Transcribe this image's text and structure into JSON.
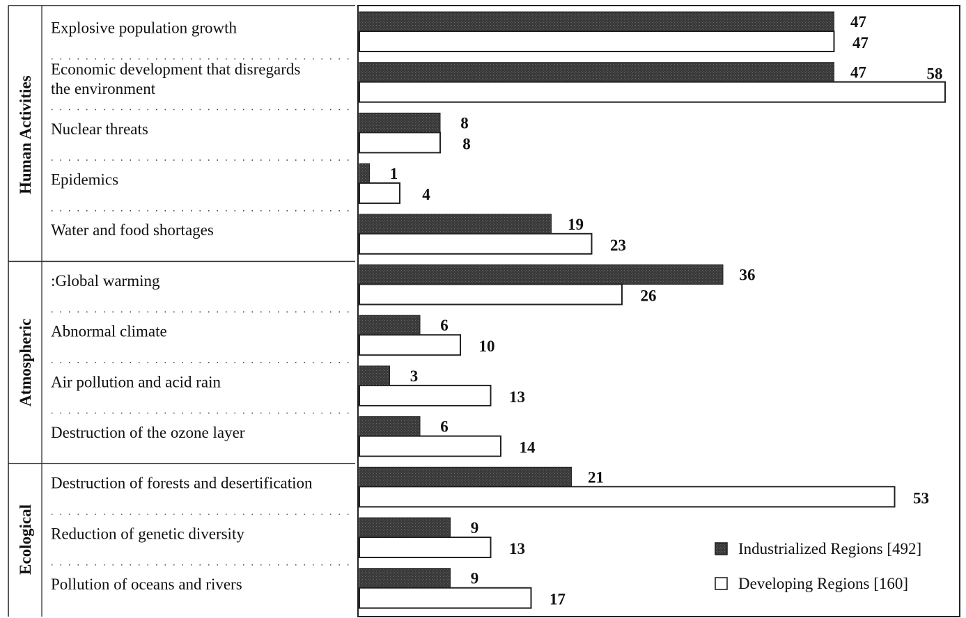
{
  "chart_data": {
    "type": "bar",
    "orientation": "horizontal",
    "groups": [
      {
        "name": "Human Activities",
        "categories": [
          [
            "Explosive population growth"
          ],
          [
            "Economic development that disregards",
            "the environment"
          ],
          [
            "Nuclear threats"
          ],
          [
            "Epidemics"
          ],
          [
            "Water and food shortages"
          ]
        ]
      },
      {
        "name": "Atmospheric",
        "categories": [
          [
            ":Global warming"
          ],
          [
            "Abnormal climate"
          ],
          [
            "Air pollution and acid rain"
          ],
          [
            "Destruction of the ozone layer"
          ]
        ]
      },
      {
        "name": "Ecological",
        "categories": [
          [
            "Destruction of forests and desertification"
          ],
          [
            "Reduction of genetic diversity"
          ],
          [
            "Pollution of oceans and rivers"
          ]
        ]
      }
    ],
    "series": [
      {
        "name": "Industrialized Regions [492]",
        "color": "#3a3a3a",
        "values": [
          47,
          47,
          8,
          1,
          19,
          36,
          6,
          3,
          6,
          21,
          9,
          9
        ]
      },
      {
        "name": "Developing Regions [160]",
        "color": "#ffffff",
        "values": [
          47,
          58,
          8,
          4,
          23,
          26,
          10,
          13,
          14,
          53,
          13,
          17
        ]
      }
    ],
    "xlim": [
      0,
      58
    ],
    "grid": false,
    "legend_position": "bottom-right"
  }
}
